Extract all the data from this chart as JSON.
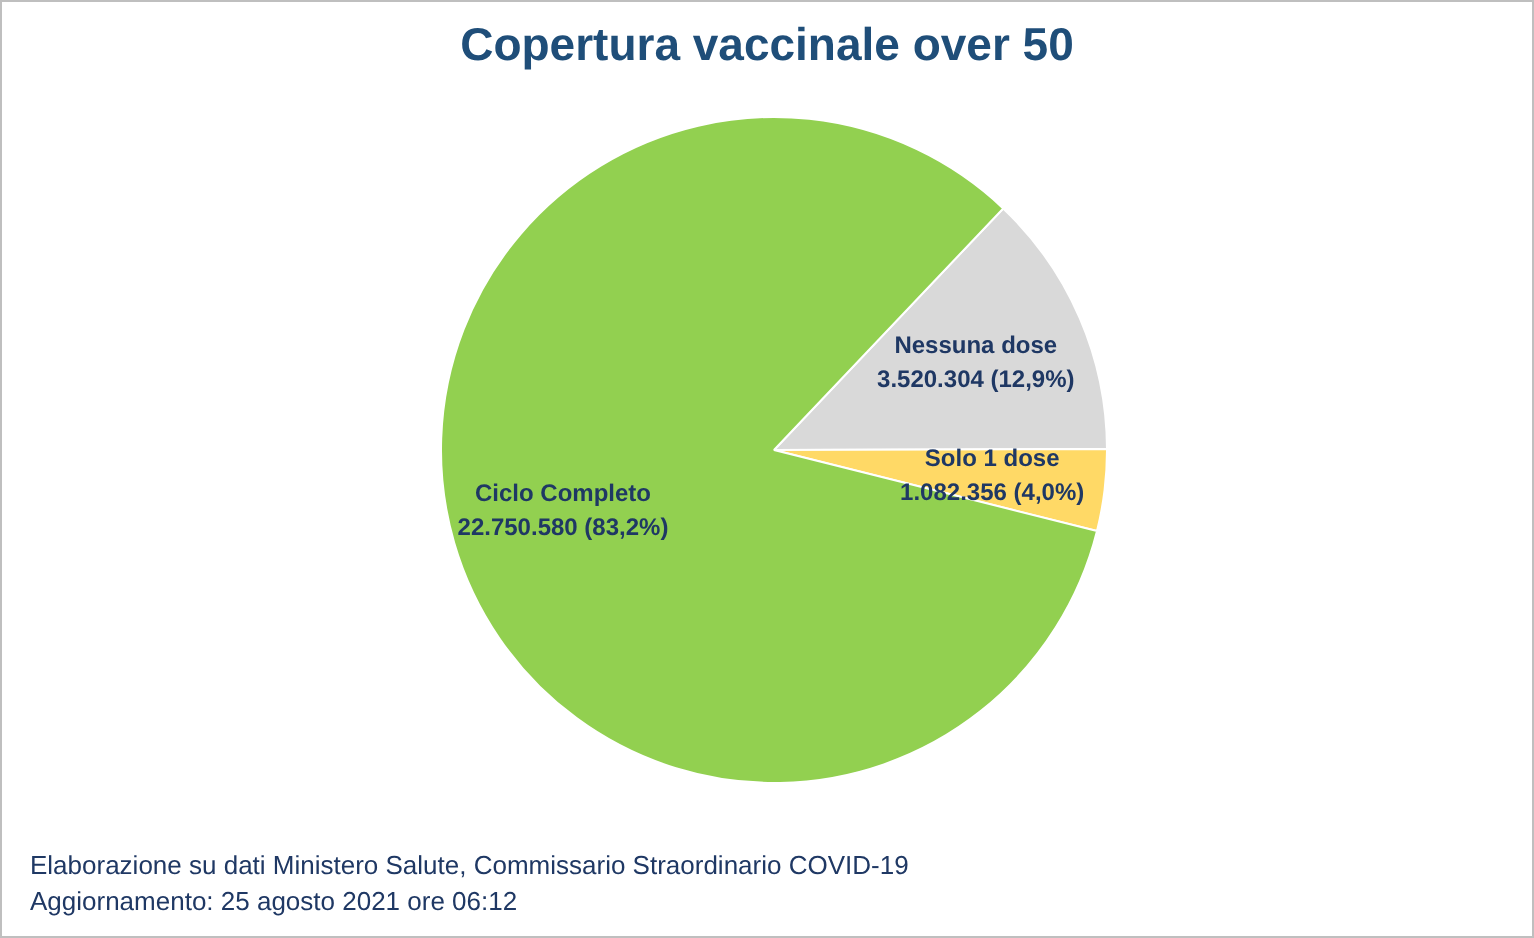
{
  "chart_data": {
    "type": "pie",
    "title": "Copertura vaccinale over 50",
    "categories": [
      "Nessuna dose",
      "Solo 1 dose",
      "Ciclo Completo"
    ],
    "values": [
      3520304,
      1082356,
      22750580
    ],
    "colors": [
      "#d9d9d9",
      "#ffd966",
      "#92d050"
    ],
    "value_labels": [
      "3.520.304 (12,9%)",
      "1.082.356 (4,0%)",
      "22.750.580 (83,2%)"
    ],
    "annotations": [
      "Elaborazione su dati Ministero Salute, Commissario Straordinario COVID-19",
      "Aggiornamento: 25 agosto 2021 ore 06:12"
    ],
    "legend": false
  }
}
